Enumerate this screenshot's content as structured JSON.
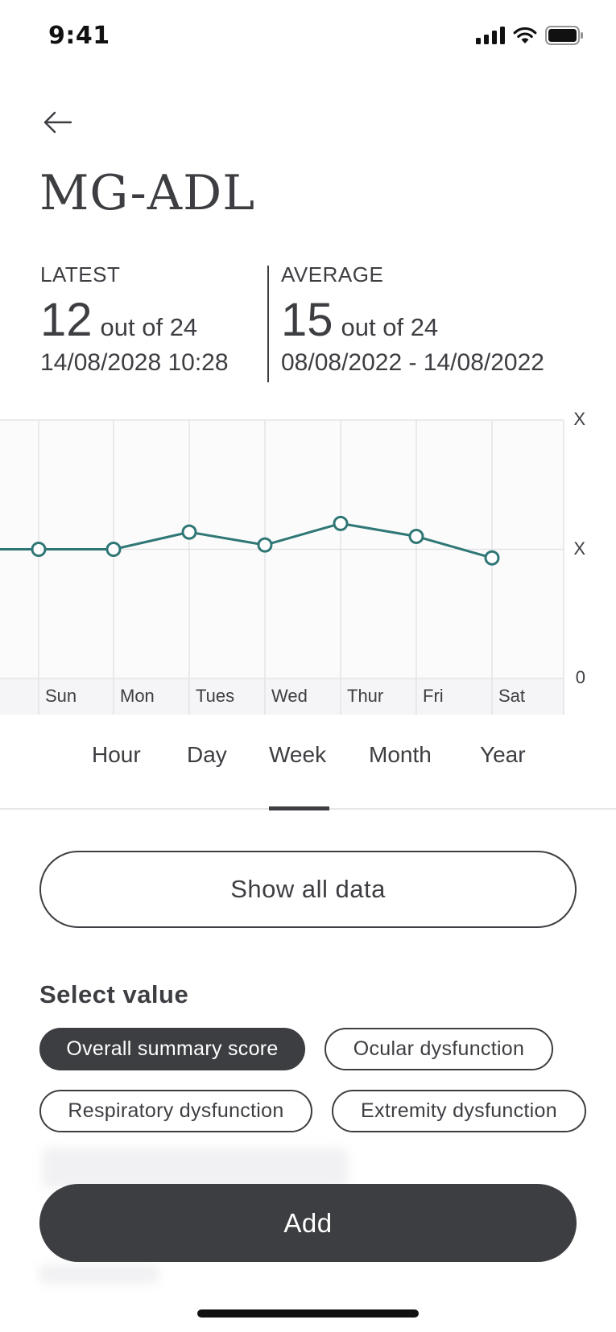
{
  "status_bar": {
    "time": "9:41"
  },
  "header": {
    "title": "MG-ADL"
  },
  "latest": {
    "label": "LATEST",
    "value": "12",
    "out_of": "out of 24",
    "date": "14/08/2028 10:28"
  },
  "average": {
    "label": "AVERAGE",
    "value": "15",
    "out_of": "out of 24",
    "date": "08/08/2022 - 14/08/2022"
  },
  "chart_data": {
    "type": "line",
    "categories": [
      "",
      "Sun",
      "Mon",
      "Tues",
      "Wed",
      "Thur",
      "Fri",
      "Sat"
    ],
    "series": [
      {
        "values": [
          15,
          15,
          15,
          17,
          15.5,
          18,
          16.5,
          14
        ]
      }
    ],
    "y_tick_labels": [
      "0",
      "X",
      "X"
    ],
    "ylim": [
      0,
      30
    ],
    "grid": true,
    "line_color": "#2f7776"
  },
  "tabs": [
    {
      "label": "Hour"
    },
    {
      "label": "Day"
    },
    {
      "label": "Week"
    },
    {
      "label": "Month"
    },
    {
      "label": "Year"
    }
  ],
  "active_tab": "Week",
  "show_all_label": "Show all data",
  "select_value": {
    "title": "Select value",
    "chips": [
      {
        "label": "Overall summary score",
        "active": true
      },
      {
        "label": "Ocular dysfunction",
        "active": false
      },
      {
        "label": "Respiratory dysfunction",
        "active": false
      },
      {
        "label": "Extremity dysfunction",
        "active": false
      }
    ]
  },
  "add_label": "Add",
  "colors": {
    "primary": "#3d3e42",
    "accent": "#2f7776",
    "divider": "#e6e6e8"
  }
}
